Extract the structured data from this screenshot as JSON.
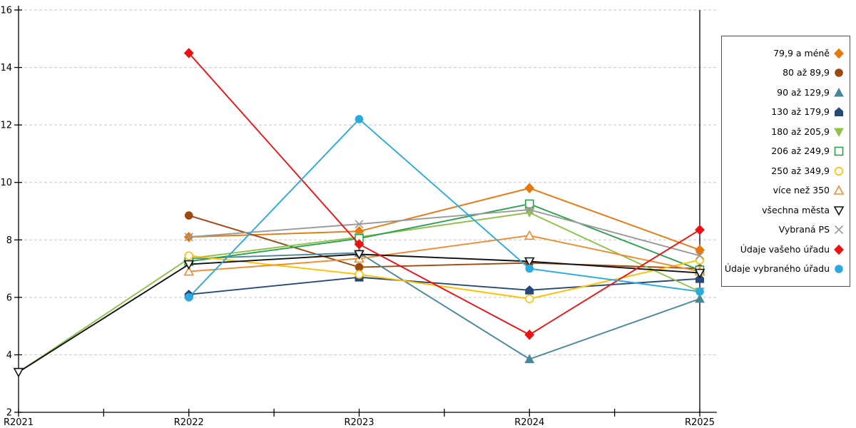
{
  "chart_data": {
    "type": "line",
    "title": "",
    "xlabel": "",
    "ylabel": "",
    "categories": [
      "R2021",
      "R2022",
      "R2023",
      "R2024",
      "R2025"
    ],
    "ylim": [
      2,
      16
    ],
    "ytick_step": 2,
    "grid": "horizontal-dashed",
    "grid_color": "#c6c6c6",
    "axis_color": "#000000",
    "legend_position": "right",
    "series": [
      {
        "name": "79,9 a méně",
        "marker": "diamond",
        "fill": "filled",
        "color": "#e8780d",
        "values": [
          null,
          8.1,
          8.3,
          9.8,
          7.65
        ]
      },
      {
        "name": "80 až 89,9",
        "marker": "circle",
        "fill": "filled",
        "color": "#9e480e",
        "values": [
          null,
          8.85,
          7.05,
          7.2,
          7.0
        ]
      },
      {
        "name": "90 až 129,9",
        "marker": "triangle-up",
        "fill": "filled",
        "color": "#47879a",
        "values": [
          null,
          7.35,
          7.55,
          3.85,
          5.95
        ]
      },
      {
        "name": "130 až 179,9",
        "marker": "pentagon",
        "fill": "filled",
        "color": "#27497a",
        "values": [
          null,
          6.1,
          6.7,
          6.25,
          6.65
        ]
      },
      {
        "name": "180 až 205,9",
        "marker": "triangle-down",
        "fill": "filled",
        "color": "#90c149",
        "values": [
          3.4,
          7.35,
          8.1,
          8.95,
          6.2
        ]
      },
      {
        "name": "206 až 249,9",
        "marker": "square",
        "fill": "open",
        "color": "#2aa14e",
        "values": [
          null,
          7.25,
          8.05,
          9.25,
          6.95
        ]
      },
      {
        "name": "250 až 349,9",
        "marker": "circle",
        "fill": "open",
        "color": "#ffc000",
        "values": [
          null,
          7.45,
          6.8,
          5.95,
          7.3
        ]
      },
      {
        "name": "více než 350",
        "marker": "triangle-up",
        "fill": "open",
        "color": "#f08a2e",
        "values": [
          null,
          6.9,
          7.35,
          8.15,
          6.9
        ]
      },
      {
        "name": "všechna města",
        "marker": "triangle-down",
        "fill": "open",
        "color": "#111111",
        "values": [
          3.4,
          7.15,
          7.5,
          7.25,
          6.85
        ]
      },
      {
        "name": "Vybraná PS",
        "marker": "x",
        "fill": "line",
        "color": "#9a9a9a",
        "values": [
          null,
          8.1,
          8.55,
          9.05,
          7.45
        ]
      },
      {
        "name": "Údaje vašeho úřadu",
        "marker": "diamond",
        "fill": "filled",
        "color": "#ee1111",
        "values": [
          null,
          14.5,
          7.85,
          4.7,
          8.35
        ]
      },
      {
        "name": "Údaje vybraného úřadu",
        "marker": "circle",
        "fill": "filled",
        "color": "#29abe2",
        "values": [
          null,
          6.0,
          12.2,
          7.0,
          6.2
        ]
      }
    ]
  }
}
